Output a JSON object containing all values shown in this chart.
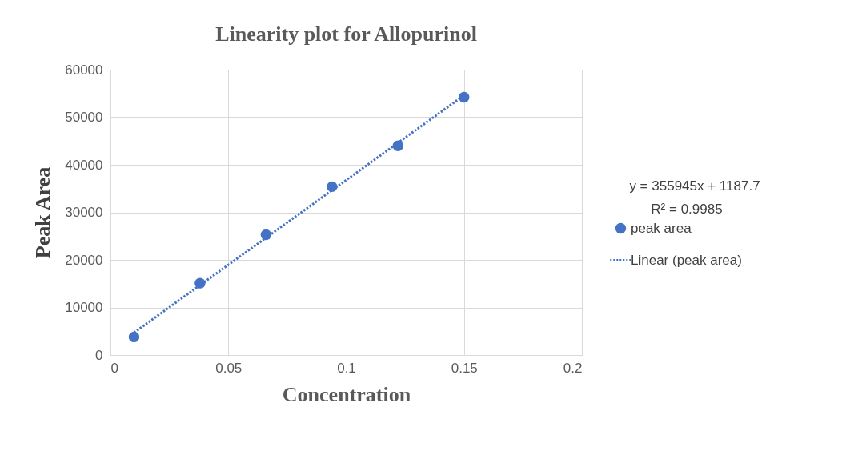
{
  "chart_data": {
    "type": "scatter",
    "title": "Linearity plot for Allopurinol",
    "xlabel": "Concentration",
    "ylabel": "Peak Area",
    "x": [
      0.01,
      0.038,
      0.066,
      0.094,
      0.122,
      0.15
    ],
    "series": [
      {
        "name": "peak area",
        "color": "#4472c4",
        "marker": "circle",
        "values": [
          3800,
          15100,
          25300,
          35400,
          44000,
          54200
        ]
      },
      {
        "name": "Linear (peak area)",
        "type": "line",
        "line_style": "dotted",
        "color": "#4472c4",
        "x": [
          0.01,
          0.15
        ],
        "values": [
          4700,
          54600
        ]
      }
    ],
    "annotations": [
      "y = 355945x + 1187.7",
      "R² = 0.9985"
    ],
    "xlim": [
      0,
      0.2
    ],
    "xticks": [
      0,
      0.05,
      0.1,
      0.15,
      0.2
    ],
    "ylim": [
      0,
      60000
    ],
    "yticks": [
      0,
      10000,
      20000,
      30000,
      40000,
      50000,
      60000
    ],
    "grid": true,
    "legend": "right"
  }
}
